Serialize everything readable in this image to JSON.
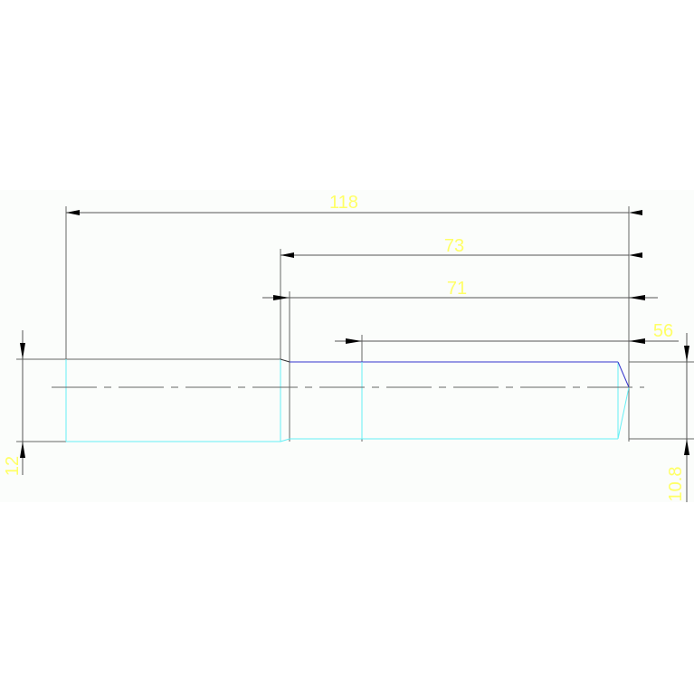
{
  "dimensions": {
    "overall_length": "118",
    "length_73": "73",
    "length_71": "71",
    "length_56": "56",
    "diameter_left": "12",
    "diameter_right": "10.8"
  },
  "colors": {
    "dimension_text": "#ffff66",
    "dimension_line": "#555555",
    "outline_cyan": "#66f0f5",
    "outline_blue": "#3333cc",
    "background": "#fbfdfb"
  }
}
